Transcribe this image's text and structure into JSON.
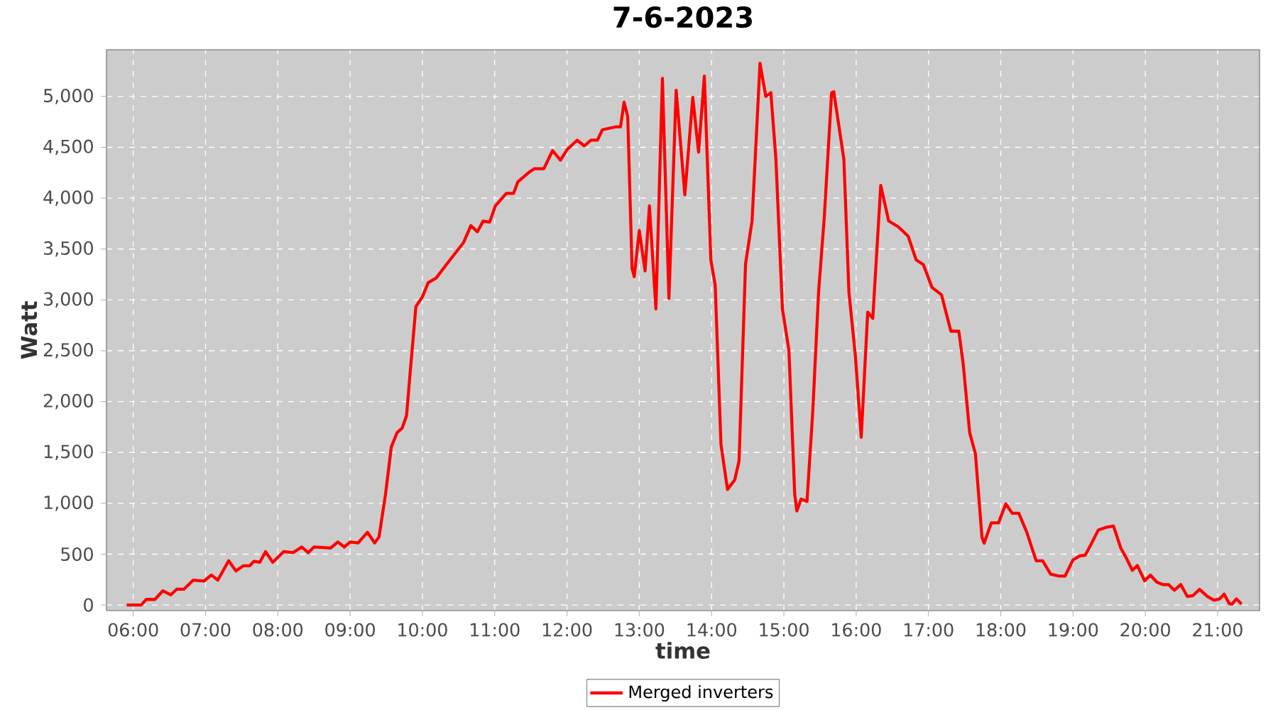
{
  "chart_data": {
    "type": "line",
    "title": "7-6-2023",
    "xlabel": "time",
    "ylabel": "Watt",
    "xlim": [
      5.63,
      21.58
    ],
    "ylim": [
      -55,
      5460
    ],
    "xticks": [
      {
        "value": 6,
        "label": "06:00"
      },
      {
        "value": 7,
        "label": "07:00"
      },
      {
        "value": 8,
        "label": "08:00"
      },
      {
        "value": 9,
        "label": "09:00"
      },
      {
        "value": 10,
        "label": "10:00"
      },
      {
        "value": 11,
        "label": "11:00"
      },
      {
        "value": 12,
        "label": "12:00"
      },
      {
        "value": 13,
        "label": "13:00"
      },
      {
        "value": 14,
        "label": "14:00"
      },
      {
        "value": 15,
        "label": "15:00"
      },
      {
        "value": 16,
        "label": "16:00"
      },
      {
        "value": 17,
        "label": "17:00"
      },
      {
        "value": 18,
        "label": "18:00"
      },
      {
        "value": 19,
        "label": "19:00"
      },
      {
        "value": 20,
        "label": "20:00"
      },
      {
        "value": 21,
        "label": "21:00"
      }
    ],
    "yticks": [
      0,
      500,
      {
        "value": 1000,
        "label": "1,000"
      },
      {
        "value": 1500,
        "label": "1,500"
      },
      {
        "value": 2000,
        "label": "2,000"
      },
      {
        "value": 2500,
        "label": "2,500"
      },
      {
        "value": 3000,
        "label": "3,000"
      },
      {
        "value": 3500,
        "label": "3,500"
      },
      {
        "value": 4000,
        "label": "4,000"
      },
      {
        "value": 4500,
        "label": "4,500"
      },
      {
        "value": 5000,
        "label": "5,000"
      }
    ],
    "grid": true,
    "legend": "bottom",
    "line_style": "solid",
    "series": [
      {
        "name": "Merged inverters",
        "color": "#ff0000",
        "x": [
          5.91,
          6.11,
          6.18,
          6.3,
          6.41,
          6.52,
          6.6,
          6.7,
          6.83,
          6.98,
          7.08,
          7.17,
          7.32,
          7.42,
          7.52,
          7.61,
          7.67,
          7.75,
          7.83,
          7.93,
          8.08,
          8.21,
          8.33,
          8.42,
          8.5,
          8.73,
          8.83,
          8.92,
          9.0,
          9.11,
          9.24,
          9.34,
          9.4,
          9.49,
          9.57,
          9.65,
          9.72,
          9.78,
          9.83,
          9.91,
          10.0,
          10.08,
          10.19,
          10.34,
          10.57,
          10.67,
          10.76,
          10.84,
          10.93,
          11.01,
          11.16,
          11.26,
          11.32,
          11.47,
          11.55,
          11.68,
          11.8,
          11.91,
          12.0,
          12.14,
          12.24,
          12.33,
          12.42,
          12.49,
          12.67,
          12.74,
          12.79,
          12.84,
          12.9,
          12.93,
          13.0,
          13.08,
          13.14,
          13.23,
          13.32,
          13.41,
          13.51,
          13.63,
          13.74,
          13.82,
          13.9,
          13.99,
          14.05,
          14.13,
          14.22,
          14.32,
          14.38,
          14.47,
          14.56,
          14.67,
          14.75,
          14.82,
          14.89,
          14.98,
          15.07,
          15.15,
          15.18,
          15.24,
          15.32,
          15.4,
          15.48,
          15.56,
          15.66,
          15.69,
          15.83,
          15.9,
          15.99,
          16.07,
          16.16,
          16.23,
          16.34,
          16.45,
          16.58,
          16.72,
          16.83,
          16.93,
          17.05,
          17.18,
          17.31,
          17.42,
          17.48,
          17.57,
          17.65,
          17.74,
          17.77,
          17.87,
          17.97,
          18.07,
          18.16,
          18.25,
          18.36,
          18.49,
          18.58,
          18.69,
          18.8,
          18.89,
          19.0,
          19.09,
          19.17,
          19.25,
          19.35,
          19.45,
          19.56,
          19.66,
          19.74,
          19.82,
          19.89,
          19.99,
          20.07,
          20.16,
          20.24,
          20.32,
          20.4,
          20.49,
          20.58,
          20.66,
          20.75,
          20.86,
          20.95,
          21.03,
          21.09,
          21.16,
          21.2,
          21.26,
          21.33
        ],
        "values": [
          0,
          0,
          55,
          55,
          140,
          100,
          155,
          155,
          245,
          235,
          295,
          245,
          435,
          335,
          385,
          385,
          430,
          420,
          525,
          420,
          525,
          515,
          570,
          515,
          570,
          560,
          620,
          570,
          620,
          610,
          715,
          610,
          670,
          1090,
          1555,
          1695,
          1740,
          1860,
          2280,
          2935,
          3030,
          3170,
          3215,
          3355,
          3565,
          3730,
          3670,
          3775,
          3765,
          3925,
          4047,
          4047,
          4160,
          4252,
          4290,
          4290,
          4467,
          4374,
          4477,
          4570,
          4514,
          4570,
          4570,
          4673,
          4701,
          4701,
          4944,
          4804,
          3308,
          3229,
          3682,
          3285,
          3925,
          2911,
          5178,
          3014,
          5061,
          4033,
          4991,
          4453,
          5201,
          3393,
          3145,
          1579,
          1136,
          1229,
          1416,
          3355,
          3776,
          5327,
          5000,
          5037,
          4383,
          2911,
          2505,
          1089,
          925,
          1042,
          1019,
          1907,
          3075,
          3822,
          5037,
          5047,
          4383,
          3075,
          2444,
          1650,
          2879,
          2818,
          4126,
          3776,
          3720,
          3626,
          3393,
          3346,
          3122,
          3051,
          2692,
          2692,
          2374,
          1696,
          1486,
          668,
          607,
          808,
          808,
          995,
          902,
          902,
          715,
          435,
          435,
          304,
          285,
          285,
          444,
          481,
          491,
          598,
          738,
          762,
          776,
          561,
          458,
          341,
          388,
          238,
          294,
          224,
          201,
          201,
          145,
          201,
          84,
          93,
          154,
          84,
          47,
          61,
          107,
          14,
          9,
          61,
          9
        ]
      }
    ]
  }
}
